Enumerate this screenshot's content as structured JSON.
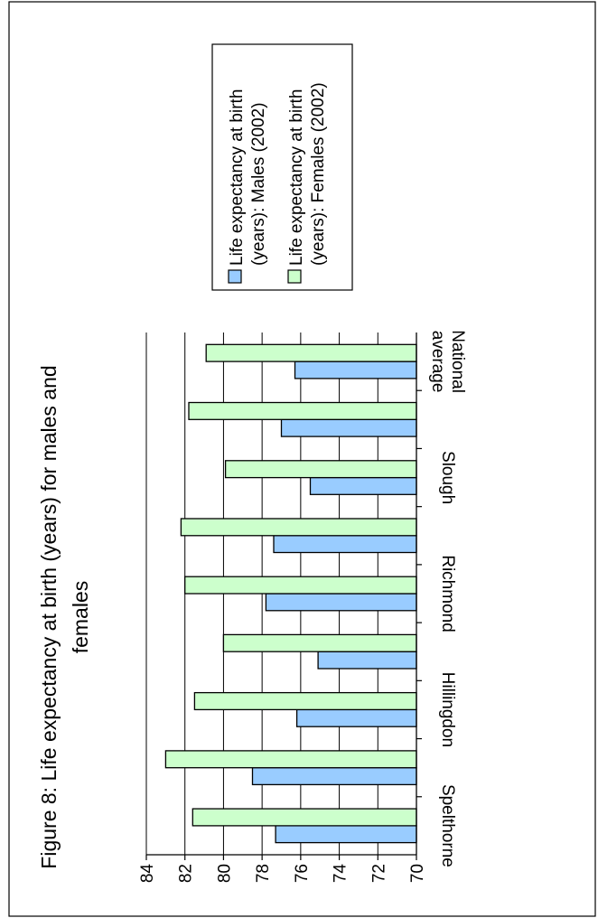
{
  "chart_data": {
    "type": "bar",
    "orientation": "horizontal",
    "rotation_degrees": -90,
    "title": "Figure 8: Life expectancy at birth (years) for males and females",
    "title_lines": [
      "Figure 8: Life expectancy at birth (years) for males and",
      "females"
    ],
    "categories": [
      "Spelthorne",
      "",
      "Hillingdon",
      "",
      "Richmond",
      "",
      "Slough",
      "",
      "National average"
    ],
    "category_label_lines": [
      [
        "Spelthorne"
      ],
      [],
      [
        "Hillingdon"
      ],
      [],
      [
        "Richmond"
      ],
      [],
      [
        "Slough"
      ],
      [],
      [
        "National",
        "average"
      ]
    ],
    "series": [
      {
        "name": "Life expectancy at birth (years): Males (2002)",
        "legend_lines": [
          "Life expectancy at birth",
          "(years): Males (2002)"
        ],
        "color": "#99ccff",
        "values": [
          77.3,
          78.5,
          76.2,
          75.1,
          77.8,
          77.4,
          75.5,
          77.0,
          76.3
        ]
      },
      {
        "name": "Life expectancy at birth (years): Females (2002)",
        "legend_lines": [
          "Life expectancy at birth",
          "(years): Females (2002)"
        ],
        "color": "#ccffcc",
        "values": [
          81.6,
          83.0,
          81.5,
          80.0,
          82.0,
          82.2,
          79.9,
          81.8,
          80.9
        ]
      }
    ],
    "xlim": [
      70,
      84
    ],
    "ticks": [
      70,
      72,
      74,
      76,
      78,
      80,
      82,
      84
    ],
    "grid": true,
    "legend_position": "right"
  }
}
